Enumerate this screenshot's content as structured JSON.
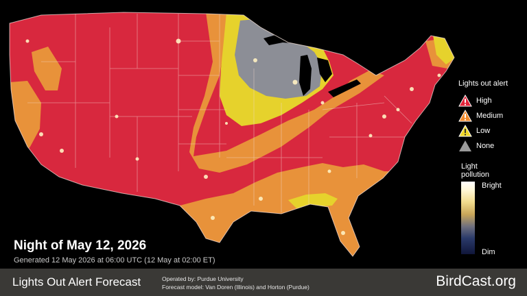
{
  "title_night": "Night of May 12, 2026",
  "generated": "Generated 12 May 2026 at 06:00 UTC (12 May at 02:00 ET)",
  "legend": {
    "title": "Lights out alert",
    "items": [
      {
        "label": "High",
        "color": "#e3243a",
        "icon": "alert-triangle-icon"
      },
      {
        "label": "Medium",
        "color": "#f08a2c",
        "icon": "alert-triangle-icon"
      },
      {
        "label": "Low",
        "color": "#f0d82a",
        "icon": "alert-triangle-icon"
      },
      {
        "label": "None",
        "color": "#9a9a9a",
        "icon": "triangle-icon"
      }
    ]
  },
  "light_pollution": {
    "title": "Light pollution",
    "bright": "Bright",
    "dim": "Dim"
  },
  "footer": {
    "title": "Lights Out Alert Forecast",
    "operated": "Operated by: Purdue University",
    "model": "Forecast model: Van Doren (Illinois) and Horton (Purdue)",
    "brand": "BirdCast.org"
  },
  "colors": {
    "high": "#d8283e",
    "medium": "#e8923a",
    "low": "#e6d22c",
    "none": "#8c8e96",
    "background": "#000000",
    "footer": "#3a3936"
  }
}
